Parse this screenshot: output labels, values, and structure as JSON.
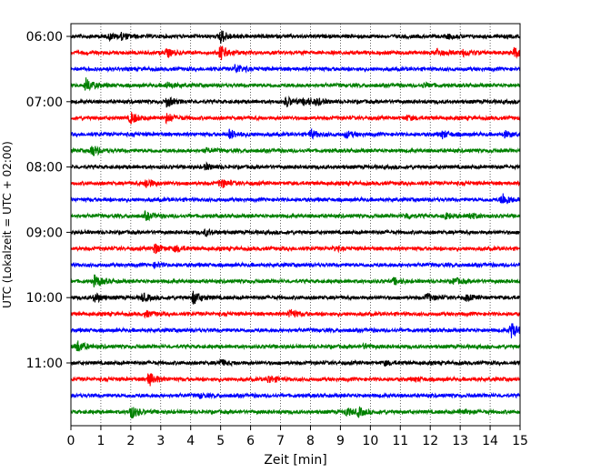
{
  "chart_data": {
    "type": "line",
    "title": "",
    "xlabel": "Zeit  [min]",
    "ylabel": "UTC (Lokalzeit = UTC + 02:00)",
    "xlim": [
      0,
      15
    ],
    "x_ticks": [
      "0",
      "1",
      "2",
      "3",
      "4",
      "5",
      "6",
      "7",
      "8",
      "9",
      "10",
      "11",
      "12",
      "13",
      "14",
      "15"
    ],
    "y_tick_labels": [
      "06:00",
      "07:00",
      "08:00",
      "09:00",
      "10:00",
      "11:00"
    ],
    "grid": "vertical-dotted",
    "line_minutes": 15,
    "line_colors": [
      "#000000",
      "#ff0000",
      "#0000ff",
      "#008000"
    ],
    "series": [
      {
        "start": "06:00",
        "color": "#000000",
        "events": [
          [
            1.3,
            3
          ],
          [
            1.7,
            3
          ],
          [
            5.0,
            7
          ],
          [
            12.6,
            2
          ]
        ]
      },
      {
        "start": "06:15",
        "color": "#ff0000",
        "events": [
          [
            3.2,
            4
          ],
          [
            5.0,
            8
          ],
          [
            12.2,
            4
          ],
          [
            13.1,
            3
          ],
          [
            14.8,
            5
          ]
        ]
      },
      {
        "start": "06:30",
        "color": "#0000ff",
        "events": [
          [
            5.5,
            5
          ]
        ]
      },
      {
        "start": "06:45",
        "color": "#008000",
        "events": [
          [
            0.5,
            7
          ],
          [
            3.2,
            3
          ],
          [
            11.8,
            2
          ]
        ]
      },
      {
        "start": "07:00",
        "color": "#000000",
        "events": [
          [
            3.2,
            5
          ],
          [
            7.2,
            5
          ],
          [
            7.8,
            4
          ],
          [
            8.2,
            3
          ]
        ]
      },
      {
        "start": "07:15",
        "color": "#ff0000",
        "events": [
          [
            2.0,
            6
          ],
          [
            3.2,
            5
          ],
          [
            11.2,
            2
          ]
        ]
      },
      {
        "start": "07:30",
        "color": "#0000ff",
        "events": [
          [
            5.3,
            5
          ],
          [
            8.0,
            4
          ],
          [
            9.2,
            3
          ],
          [
            12.4,
            4
          ],
          [
            14.5,
            3
          ]
        ]
      },
      {
        "start": "07:45",
        "color": "#008000",
        "events": [
          [
            0.7,
            6
          ],
          [
            4.5,
            2
          ]
        ]
      },
      {
        "start": "08:00",
        "color": "#000000",
        "events": [
          [
            4.5,
            3
          ]
        ]
      },
      {
        "start": "08:15",
        "color": "#ff0000",
        "events": [
          [
            2.5,
            5
          ],
          [
            5.0,
            5
          ]
        ]
      },
      {
        "start": "08:30",
        "color": "#0000ff",
        "events": [
          [
            14.4,
            7
          ]
        ]
      },
      {
        "start": "08:45",
        "color": "#008000",
        "events": [
          [
            2.5,
            4
          ],
          [
            11.2,
            3
          ],
          [
            12.5,
            3
          ],
          [
            13.3,
            3
          ]
        ]
      },
      {
        "start": "09:00",
        "color": "#000000",
        "events": [
          [
            4.5,
            3
          ]
        ]
      },
      {
        "start": "09:15",
        "color": "#ff0000",
        "events": [
          [
            2.8,
            5
          ],
          [
            3.5,
            3
          ],
          [
            8.8,
            2
          ]
        ]
      },
      {
        "start": "09:30",
        "color": "#0000ff",
        "events": [
          [
            2.8,
            2
          ]
        ]
      },
      {
        "start": "09:45",
        "color": "#008000",
        "events": [
          [
            0.8,
            6
          ],
          [
            10.8,
            3
          ],
          [
            12.8,
            3
          ]
        ]
      },
      {
        "start": "10:00",
        "color": "#000000",
        "events": [
          [
            0.8,
            5
          ],
          [
            2.4,
            4
          ],
          [
            4.1,
            7
          ],
          [
            11.9,
            4
          ],
          [
            13.2,
            3
          ]
        ]
      },
      {
        "start": "10:15",
        "color": "#ff0000",
        "events": [
          [
            2.5,
            3
          ],
          [
            7.3,
            5
          ]
        ]
      },
      {
        "start": "10:30",
        "color": "#0000ff",
        "events": [
          [
            14.7,
            8
          ]
        ]
      },
      {
        "start": "10:45",
        "color": "#008000",
        "events": [
          [
            0.2,
            6
          ],
          [
            9.8,
            2
          ]
        ]
      },
      {
        "start": "11:00",
        "color": "#000000",
        "events": [
          [
            5.0,
            3
          ],
          [
            10.5,
            2
          ]
        ]
      },
      {
        "start": "11:15",
        "color": "#ff0000",
        "events": [
          [
            2.6,
            7
          ],
          [
            6.6,
            4
          ],
          [
            11.5,
            2
          ]
        ]
      },
      {
        "start": "11:30",
        "color": "#0000ff",
        "events": [
          [
            4.3,
            2
          ]
        ]
      },
      {
        "start": "11:45",
        "color": "#008000",
        "events": [
          [
            2.0,
            7
          ],
          [
            9.2,
            4
          ],
          [
            9.6,
            4
          ],
          [
            13.0,
            3
          ]
        ]
      }
    ]
  }
}
